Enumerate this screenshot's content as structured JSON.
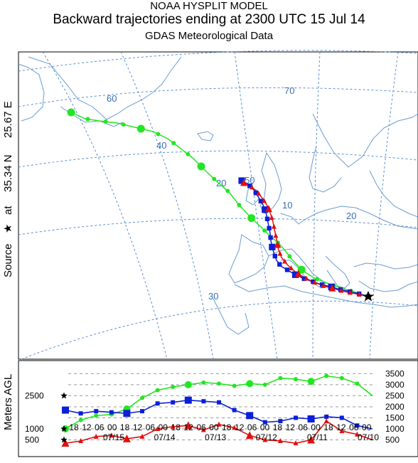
{
  "header": {
    "line1": "NOAA HYSPLIT MODEL",
    "line2": "Backward trajectories ending at 2300 UTC 15 Jul 14",
    "line3": "GDAS Meteorological Data"
  },
  "source_label": {
    "prefix": "Source",
    "star": "★",
    "at": "at",
    "lat": "35.34 N",
    "lon": "25.67 E"
  },
  "map": {
    "grid_labels": [
      "60",
      "70",
      "40",
      "50",
      "20",
      "10",
      "20",
      "30"
    ],
    "colors": {
      "grid": "#5a8fd0",
      "coast": "#6a9ccf",
      "green": "#22e622",
      "blue": "#0a1fd6",
      "red": "#e01010"
    }
  },
  "chart_data": {
    "type": "line",
    "ylabel": "Meters AGL",
    "left_ticks": [
      "2500",
      "1000",
      "500"
    ],
    "right_ticks": [
      "3500",
      "3000",
      "2500",
      "2000",
      "1500",
      "1000",
      "500"
    ],
    "x_hour_labels": [
      "18",
      "12",
      "06",
      "00",
      "18",
      "12",
      "06",
      "00",
      "18",
      "12",
      "06",
      "00",
      "18",
      "12",
      "06",
      "00",
      "18",
      "12",
      "06",
      "00",
      "18",
      "12",
      "06",
      "00"
    ],
    "x_date_labels": [
      "07/15",
      "07/14",
      "07/13",
      "07/12",
      "07/11",
      "07/10"
    ],
    "x_unit": "hours before 2300 UTC 15 Jul 14",
    "xlim": [
      0,
      120
    ],
    "ylim": [
      0,
      3900
    ],
    "series": [
      {
        "color": "#22e622",
        "marker": "circle",
        "start_height": 2500,
        "x": [
          0,
          6,
          12,
          18,
          24,
          30,
          36,
          42,
          48,
          54,
          60,
          66,
          72,
          78,
          84,
          90,
          96,
          102,
          108,
          114,
          120
        ],
        "values": [
          2500,
          3050,
          3300,
          3400,
          3150,
          3250,
          3300,
          3000,
          3050,
          2950,
          3050,
          3100,
          3000,
          2900,
          2750,
          2400,
          1900,
          1650,
          1600,
          1400,
          1000
        ]
      },
      {
        "color": "#0a1fd6",
        "marker": "square",
        "start_height": 1000,
        "x": [
          0,
          6,
          12,
          18,
          24,
          30,
          36,
          42,
          48,
          54,
          60,
          66,
          72,
          78,
          84,
          90,
          96,
          102,
          108,
          114,
          120
        ],
        "values": [
          1000,
          1150,
          1500,
          1550,
          1450,
          1500,
          1350,
          1300,
          1600,
          1850,
          2200,
          2250,
          2300,
          2200,
          2150,
          1800,
          1700,
          1750,
          1800,
          1700,
          1850
        ]
      },
      {
        "color": "#e01010",
        "marker": "triangle",
        "start_height": 500,
        "x": [
          0,
          6,
          12,
          18,
          24,
          30,
          36,
          42,
          48,
          54,
          60,
          66,
          72,
          78,
          84,
          90,
          96,
          102,
          108,
          114,
          120
        ],
        "values": [
          500,
          750,
          900,
          1350,
          500,
          350,
          450,
          500,
          700,
          1050,
          1200,
          950,
          1150,
          1100,
          1000,
          650,
          550,
          700,
          650,
          450,
          350
        ]
      }
    ]
  }
}
